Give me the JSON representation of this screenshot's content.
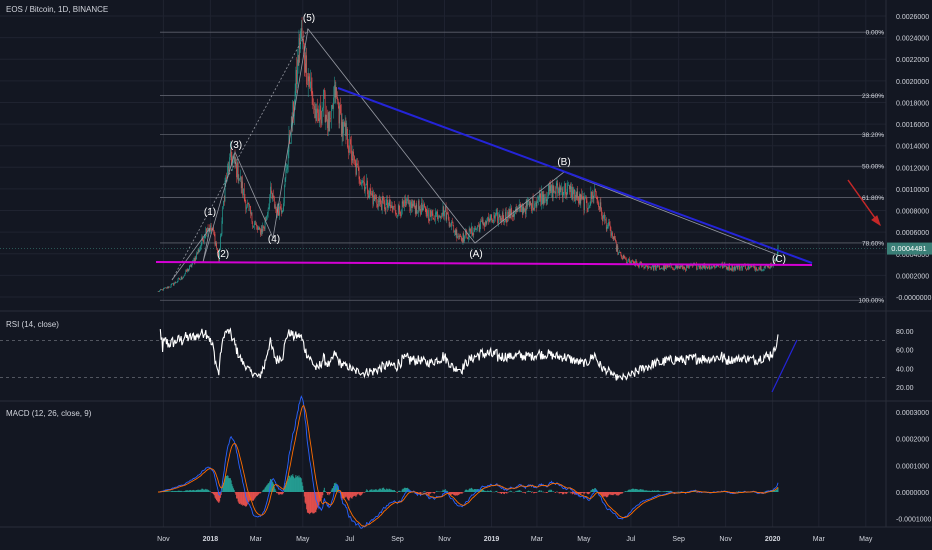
{
  "panes": {
    "price_title": "EOS / Bitcoin, 1D, BINANCE",
    "rsi_title": "RSI (14, close)",
    "macd_title": "MACD (12, 26, close, 9)"
  },
  "colors": {
    "background": "#131722",
    "grid": "#1f2330",
    "axis_text": "#d1d4dc",
    "candle_up": "#26a69a",
    "candle_down": "#ef5350",
    "fib_line": "#5d606b",
    "trendline_upper": "#2424d8",
    "trendline_lower": "#d400d4",
    "rsi_line": "#ffffff",
    "macd_line": "#2962ff",
    "signal_line": "#ff6d00",
    "arrow": "#c62828",
    "price_badge": "#3a7f77"
  },
  "price_axis": {
    "ticks": [
      "0.0026000",
      "0.0024000",
      "0.0022000",
      "0.0020000",
      "0.0018000",
      "0.0016000",
      "0.0014000",
      "0.0012000",
      "0.0010000",
      "0.0008000",
      "0.0006000",
      "0.0004000",
      "0.0002000",
      "-0.0000000"
    ],
    "last_price": "0.0004481"
  },
  "fib_levels": [
    {
      "label": "0.00%",
      "value": 0.00245
    },
    {
      "label": "23.60%",
      "value": 0.001865
    },
    {
      "label": "38.20%",
      "value": 0.001505
    },
    {
      "label": "50.00%",
      "value": 0.00121
    },
    {
      "label": "61.80%",
      "value": 0.00092
    },
    {
      "label": "78.60%",
      "value": 0.0005
    },
    {
      "label": "100.00%",
      "value": -3e-05
    }
  ],
  "wave_labels": [
    "(1)",
    "(2)",
    "(3)",
    "(4)",
    "(5)",
    "(A)",
    "(B)",
    "(C)"
  ],
  "rsi_axis": {
    "ticks": [
      "80.00",
      "60.00",
      "40.00",
      "20.00"
    ],
    "levels": [
      70,
      30
    ]
  },
  "macd_axis": {
    "ticks": [
      "0.0003000",
      "0.0002000",
      "0.0001000",
      "0.0000000",
      "-0.0001000"
    ]
  },
  "time_axis": {
    "labels": [
      "Nov",
      "2018",
      "Mar",
      "May",
      "Jul",
      "Sep",
      "Nov",
      "2019",
      "Mar",
      "May",
      "Jul",
      "Sep",
      "Nov",
      "2020",
      "Mar",
      "May"
    ]
  },
  "chart_data": [
    {
      "type": "candlestick",
      "title": "EOS / Bitcoin, 1D, BINANCE",
      "ylim": [
        -0.00012,
        0.0027
      ],
      "x": [
        "2017-10-25",
        "2017-11-10",
        "2017-11-25",
        "2017-12-08",
        "2017-12-18",
        "2017-12-28",
        "2018-01-05",
        "2018-01-12",
        "2018-01-20",
        "2018-01-28",
        "2018-02-06",
        "2018-02-15",
        "2018-02-25",
        "2018-03-05",
        "2018-03-12",
        "2018-03-20",
        "2018-03-28",
        "2018-04-05",
        "2018-04-12",
        "2018-04-20",
        "2018-04-28",
        "2018-05-05",
        "2018-05-12",
        "2018-05-20",
        "2018-05-28",
        "2018-06-05",
        "2018-06-12",
        "2018-06-20",
        "2018-06-28",
        "2018-07-08",
        "2018-07-20",
        "2018-08-01",
        "2018-08-15",
        "2018-09-01",
        "2018-09-15",
        "2018-10-01",
        "2018-10-15",
        "2018-11-01",
        "2018-11-15",
        "2018-11-25",
        "2018-12-05",
        "2018-12-15",
        "2018-12-25",
        "2019-01-05",
        "2019-01-20",
        "2019-02-05",
        "2019-02-20",
        "2019-03-05",
        "2019-03-20",
        "2019-04-05",
        "2019-04-15",
        "2019-04-25",
        "2019-05-05",
        "2019-05-15",
        "2019-05-25",
        "2019-06-05",
        "2019-06-15",
        "2019-06-25",
        "2019-07-10",
        "2019-07-25",
        "2019-08-10",
        "2019-08-25",
        "2019-09-10",
        "2019-09-25",
        "2019-10-10",
        "2019-10-25",
        "2019-11-10",
        "2019-11-25",
        "2019-12-10",
        "2019-12-25",
        "2020-01-03",
        "2020-01-08"
      ],
      "close": [
        5e-05,
        0.0001,
        0.00018,
        0.0003,
        0.00045,
        0.00066,
        0.0006,
        0.00035,
        0.00105,
        0.0013,
        0.00115,
        0.0009,
        0.0007,
        0.0006,
        0.00065,
        0.00095,
        0.0008,
        0.00085,
        0.00135,
        0.0018,
        0.00245,
        0.00215,
        0.0019,
        0.0016,
        0.0018,
        0.00155,
        0.0019,
        0.0016,
        0.00145,
        0.0012,
        0.00105,
        0.0009,
        0.00085,
        0.0008,
        0.00085,
        0.00082,
        0.00075,
        0.0008,
        0.0006,
        0.00055,
        0.0006,
        0.00065,
        0.0007,
        0.00072,
        0.00075,
        0.0008,
        0.00085,
        0.00092,
        0.00098,
        0.001,
        0.00097,
        0.0009,
        0.00085,
        0.00098,
        0.00075,
        0.0006,
        0.0004,
        0.00033,
        0.0003,
        0.00028,
        0.00027,
        0.00028,
        0.00027,
        0.00029,
        0.00028,
        0.00029,
        0.00027,
        0.00028,
        0.00027,
        0.00028,
        0.00032,
        0.000448
      ]
    },
    {
      "type": "line",
      "title": "RSI (14, close)",
      "ylim": [
        10,
        90
      ],
      "levels": [
        70,
        30
      ]
    },
    {
      "type": "bar",
      "title": "MACD (12, 26, close, 9)",
      "ylim": [
        -0.00015,
        0.00035
      ]
    }
  ]
}
